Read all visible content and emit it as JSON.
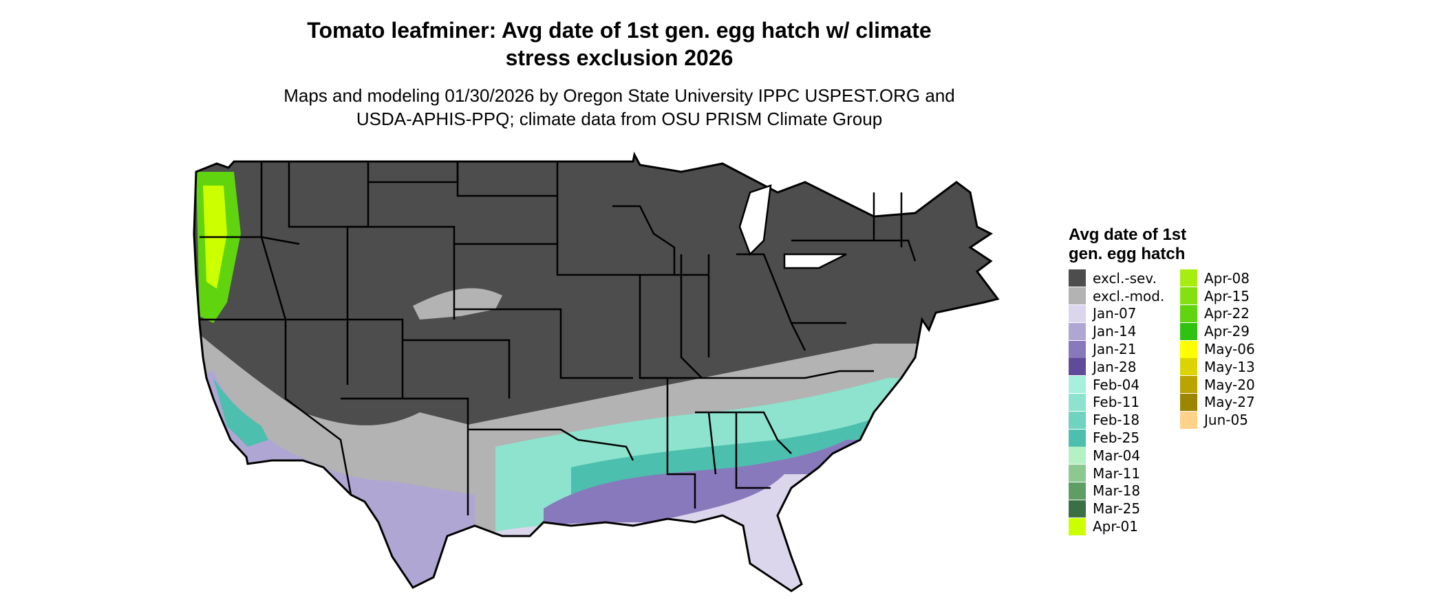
{
  "title_line1": "Tomato leafminer: Avg date of 1st gen. egg hatch w/ climate",
  "title_line2": "stress exclusion 2026",
  "subtitle_line1": "Maps and modeling 01/30/2026 by Oregon State University IPPC USPEST.ORG and",
  "subtitle_line2": "USDA-APHIS-PPQ; climate data from OSU PRISM Climate Group",
  "legend": {
    "title_line1": "Avg date of 1st",
    "title_line2": "gen. egg hatch",
    "col1": [
      {
        "label": "excl.-sev.",
        "color": "#4d4d4d"
      },
      {
        "label": "excl.-mod.",
        "color": "#b3b3b3"
      },
      {
        "label": "Jan-07",
        "color": "#dcd6ec"
      },
      {
        "label": "Jan-14",
        "color": "#b0a6d3"
      },
      {
        "label": "Jan-21",
        "color": "#8878bc"
      },
      {
        "label": "Jan-28",
        "color": "#5f4b99"
      },
      {
        "label": "Feb-04",
        "color": "#a6f0dd"
      },
      {
        "label": "Feb-11",
        "color": "#8de3cd"
      },
      {
        "label": "Feb-18",
        "color": "#6fd3bf"
      },
      {
        "label": "Feb-25",
        "color": "#4cbfae"
      },
      {
        "label": "Mar-04",
        "color": "#b4f2c3"
      },
      {
        "label": "Mar-11",
        "color": "#8cc990"
      },
      {
        "label": "Mar-18",
        "color": "#5e9e62"
      },
      {
        "label": "Mar-25",
        "color": "#3a7043"
      },
      {
        "label": "Apr-01",
        "color": "#ccff00"
      }
    ],
    "col2": [
      {
        "label": "Apr-08",
        "color": "#a6ee0f"
      },
      {
        "label": "Apr-15",
        "color": "#84e00f"
      },
      {
        "label": "Apr-22",
        "color": "#5fd40f"
      },
      {
        "label": "Apr-29",
        "color": "#2fc210"
      },
      {
        "label": "May-06",
        "color": "#ffff00"
      },
      {
        "label": "May-13",
        "color": "#dcd400"
      },
      {
        "label": "May-20",
        "color": "#bca400"
      },
      {
        "label": "May-27",
        "color": "#9c8600"
      },
      {
        "label": "Jun-05",
        "color": "#ffd28a"
      }
    ]
  }
}
